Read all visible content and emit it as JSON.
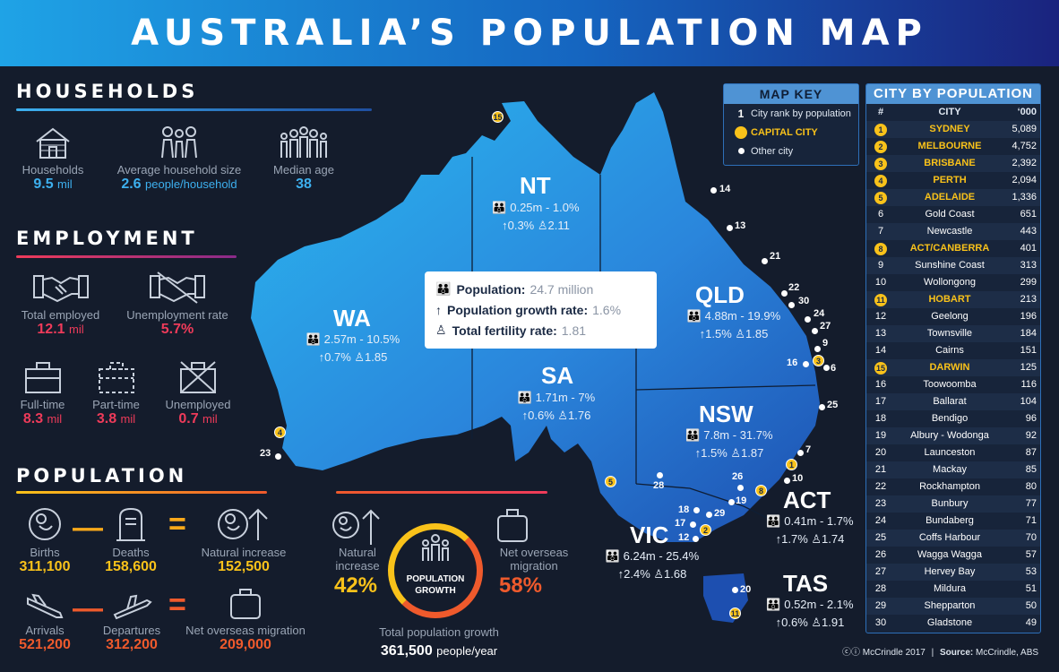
{
  "title": "AUSTRALIA’S POPULATION MAP",
  "households": {
    "heading": "HOUSEHOLDS",
    "items": [
      {
        "label": "Households",
        "value": "9.5",
        "unit": "mil",
        "icon": "house-icon"
      },
      {
        "label": "Average household size",
        "value": "2.6",
        "unit": "people/household",
        "icon": "family-icon"
      },
      {
        "label": "Median age",
        "value": "38",
        "unit": "",
        "icon": "people-group-icon"
      }
    ]
  },
  "employment": {
    "heading": "EMPLOYMENT",
    "items": [
      {
        "label": "Total employed",
        "value": "12.1",
        "unit": "mil",
        "icon": "handshake-icon"
      },
      {
        "label": "Unemployment rate",
        "value": "5.7%",
        "unit": "",
        "icon": "crossed-handshake-icon"
      },
      {
        "label": "Full-time",
        "value": "8.3",
        "unit": "mil",
        "icon": "briefcase-icon"
      },
      {
        "label": "Part-time",
        "value": "3.8",
        "unit": "mil",
        "icon": "dashed-briefcase-icon"
      },
      {
        "label": "Unemployed",
        "value": "0.7",
        "unit": "mil",
        "icon": "crossed-briefcase-icon"
      }
    ]
  },
  "population": {
    "heading": "POPULATION",
    "births": {
      "label": "Births",
      "value": "311,100"
    },
    "deaths": {
      "label": "Deaths",
      "value": "158,600"
    },
    "natural_increase": {
      "label": "Natural increase",
      "value": "152,500"
    },
    "arrivals": {
      "label": "Arrivals",
      "value": "521,200"
    },
    "departures": {
      "label": "Departures",
      "value": "312,200"
    },
    "net_overseas": {
      "label": "Net overseas migration",
      "value": "209,000"
    },
    "minus": "—",
    "equals": "=",
    "growth": {
      "natural_label": "Natural\nincrease",
      "natural_pct": "42%",
      "migration_label": "Net overseas\nmigration",
      "migration_pct": "58%",
      "center_label": "POPULATION\nGROWTH",
      "total_label": "Total population growth",
      "total_value": "361,500",
      "total_unit": "people/year"
    }
  },
  "national": {
    "population_label": "Population:",
    "population_value": "24.7 million",
    "growth_label": "Population growth rate:",
    "growth_value": "1.6%",
    "fertility_label": "Total fertility rate:",
    "fertility_value": "1.81"
  },
  "states": {
    "NT": {
      "name": "NT",
      "pop": "0.25m - 1.0%",
      "growth": "0.3%",
      "fertility": "2.11"
    },
    "WA": {
      "name": "WA",
      "pop": "2.57m - 10.5%",
      "growth": "0.7%",
      "fertility": "1.85"
    },
    "SA": {
      "name": "SA",
      "pop": "1.71m - 7%",
      "growth": "0.6%",
      "fertility": "1.76"
    },
    "QLD": {
      "name": "QLD",
      "pop": "4.88m - 19.9%",
      "growth": "1.5%",
      "fertility": "1.85"
    },
    "NSW": {
      "name": "NSW",
      "pop": "7.8m - 31.7%",
      "growth": "1.5%",
      "fertility": "1.87"
    },
    "ACT": {
      "name": "ACT",
      "pop": "0.41m - 1.7%",
      "growth": "1.7%",
      "fertility": "1.74"
    },
    "VIC": {
      "name": "VIC",
      "pop": "6.24m - 25.4%",
      "growth": "2.4%",
      "fertility": "1.68"
    },
    "TAS": {
      "name": "TAS",
      "pop": "0.52m - 2.1%",
      "growth": "0.6%",
      "fertility": "1.91"
    }
  },
  "map_labels": [
    "15",
    "14",
    "13",
    "21",
    "22",
    "30",
    "24",
    "27",
    "9",
    "3",
    "16",
    "6",
    "25",
    "7",
    "1",
    "10",
    "8",
    "26",
    "19",
    "29",
    "18",
    "17",
    "12",
    "2",
    "28",
    "5",
    "4",
    "23",
    "20",
    "11"
  ],
  "map_key": {
    "heading": "MAP KEY",
    "rank_symbol": "1",
    "rank_label": "City rank by population",
    "capital_label": "CAPITAL CITY",
    "other_label": "Other city"
  },
  "city_table": {
    "heading": "CITY BY POPULATION",
    "col_rank": "#",
    "col_city": "CITY",
    "col_pop": "‘000",
    "rows": [
      {
        "rank": "1",
        "city": "SYDNEY",
        "pop": "5,089",
        "capital": true
      },
      {
        "rank": "2",
        "city": "MELBOURNE",
        "pop": "4,752",
        "capital": true
      },
      {
        "rank": "3",
        "city": "BRISBANE",
        "pop": "2,392",
        "capital": true
      },
      {
        "rank": "4",
        "city": "PERTH",
        "pop": "2,094",
        "capital": true
      },
      {
        "rank": "5",
        "city": "ADELAIDE",
        "pop": "1,336",
        "capital": true
      },
      {
        "rank": "6",
        "city": "Gold Coast",
        "pop": "651",
        "capital": false
      },
      {
        "rank": "7",
        "city": "Newcastle",
        "pop": "443",
        "capital": false
      },
      {
        "rank": "8",
        "city": "ACT/CANBERRA",
        "pop": "401",
        "capital": true
      },
      {
        "rank": "9",
        "city": "Sunshine Coast",
        "pop": "313",
        "capital": false
      },
      {
        "rank": "10",
        "city": "Wollongong",
        "pop": "299",
        "capital": false
      },
      {
        "rank": "11",
        "city": "HOBART",
        "pop": "213",
        "capital": true
      },
      {
        "rank": "12",
        "city": "Geelong",
        "pop": "196",
        "capital": false
      },
      {
        "rank": "13",
        "city": "Townsville",
        "pop": "184",
        "capital": false
      },
      {
        "rank": "14",
        "city": "Cairns",
        "pop": "151",
        "capital": false
      },
      {
        "rank": "15",
        "city": "DARWIN",
        "pop": "125",
        "capital": true
      },
      {
        "rank": "16",
        "city": "Toowoomba",
        "pop": "116",
        "capital": false
      },
      {
        "rank": "17",
        "city": "Ballarat",
        "pop": "104",
        "capital": false
      },
      {
        "rank": "18",
        "city": "Bendigo",
        "pop": "96",
        "capital": false
      },
      {
        "rank": "19",
        "city": "Albury - Wodonga",
        "pop": "92",
        "capital": false
      },
      {
        "rank": "20",
        "city": "Launceston",
        "pop": "87",
        "capital": false
      },
      {
        "rank": "21",
        "city": "Mackay",
        "pop": "85",
        "capital": false
      },
      {
        "rank": "22",
        "city": "Rockhampton",
        "pop": "80",
        "capital": false
      },
      {
        "rank": "23",
        "city": "Bunbury",
        "pop": "77",
        "capital": false
      },
      {
        "rank": "24",
        "city": "Bundaberg",
        "pop": "71",
        "capital": false
      },
      {
        "rank": "25",
        "city": "Coffs Harbour",
        "pop": "70",
        "capital": false
      },
      {
        "rank": "26",
        "city": "Wagga Wagga",
        "pop": "57",
        "capital": false
      },
      {
        "rank": "27",
        "city": "Hervey Bay",
        "pop": "53",
        "capital": false
      },
      {
        "rank": "28",
        "city": "Mildura",
        "pop": "51",
        "capital": false
      },
      {
        "rank": "29",
        "city": "Shepparton",
        "pop": "50",
        "capital": false
      },
      {
        "rank": "30",
        "city": "Gladstone",
        "pop": "49",
        "capital": false
      }
    ]
  },
  "footer": {
    "credit": "McCrindle 2017",
    "separator": "|",
    "source_label": "Source:",
    "source_value": "McCrindle, ABS"
  },
  "colors": {
    "accent_blue": "#3db0ef",
    "accent_red": "#ef3b5a",
    "accent_yellow": "#f9c21a",
    "accent_orange": "#ef5a2c"
  }
}
